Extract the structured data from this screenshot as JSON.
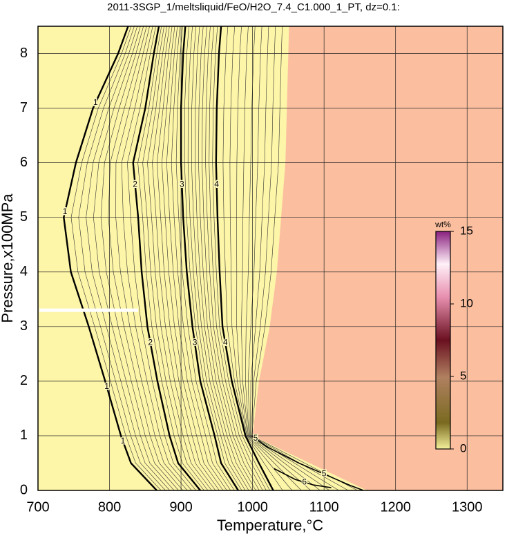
{
  "chart_data": {
    "type": "contour",
    "title": "2011-3SGP_1/meltsliquid/FeO/H2O_7.4_C1.000_1_PT, dz=0.1:",
    "xlabel": "Temperature,°C",
    "ylabel": "Pressure,x100MPa",
    "xlim": [
      700,
      1350
    ],
    "ylim": [
      0,
      8.5
    ],
    "xticks": [
      700,
      800,
      900,
      1000,
      1100,
      1200,
      1300
    ],
    "yticks": [
      0,
      1,
      2,
      3,
      4,
      5,
      6,
      7,
      8
    ],
    "grid": true,
    "background_color": "#fdf5a8",
    "region": {
      "color": "#fbbfa0",
      "x": [
        1051,
        1050,
        1048,
        1046,
        1040,
        1034,
        1024,
        1009,
        1000,
        1080,
        1160
      ],
      "y": [
        8.5,
        8,
        7,
        6,
        5,
        4,
        3,
        2,
        1,
        0.5,
        0
      ]
    },
    "series": [
      {
        "name": "1",
        "color": "#000000",
        "x": [
          826,
          812,
          777,
          753,
          736,
          746,
          771,
          794,
          816,
          830,
          866
        ],
        "y": [
          8.5,
          8,
          7,
          6,
          5,
          4,
          3,
          2,
          1,
          0.5,
          0
        ]
      },
      {
        "name": "2",
        "color": "#000000",
        "x": [
          869,
          862,
          850,
          833,
          840,
          845,
          853,
          867,
          884,
          896,
          927
        ],
        "y": [
          8.5,
          8,
          7,
          6,
          5,
          4,
          3,
          2,
          1,
          0.5,
          0
        ]
      },
      {
        "name": "3",
        "color": "#000000",
        "x": [
          906,
          903,
          900,
          900,
          903,
          908,
          916,
          927,
          947,
          956,
          980
        ],
        "y": [
          8.5,
          8,
          7,
          6,
          5,
          4,
          3,
          2,
          1,
          0.5,
          0
        ]
      },
      {
        "name": "4",
        "color": "#000000",
        "x": [
          956,
          953,
          950,
          949,
          951,
          954,
          958,
          971,
          990,
          1009,
          1029
        ],
        "y": [
          8.5,
          8,
          7,
          6,
          5,
          4,
          3,
          2,
          1,
          0.5,
          0
        ]
      },
      {
        "name": "5",
        "color": "#000000",
        "x": [
          999,
          1020,
          1065,
          1100,
          1135,
          1155
        ],
        "y": [
          1.0,
          0.8,
          0.5,
          0.3,
          0.1,
          0
        ]
      },
      {
        "name": "6",
        "color": "#000000",
        "x": [
          1030,
          1060,
          1085,
          1110
        ],
        "y": [
          0.4,
          0.2,
          0.1,
          0.05
        ]
      }
    ],
    "marker_line": {
      "color": "#ffffff",
      "x": [
        700,
        840
      ],
      "y": [
        3.3,
        3.3
      ]
    },
    "colorbar": {
      "label": "wt%",
      "lim": [
        0,
        15
      ],
      "ticks": [
        0,
        5,
        10,
        15
      ]
    }
  }
}
